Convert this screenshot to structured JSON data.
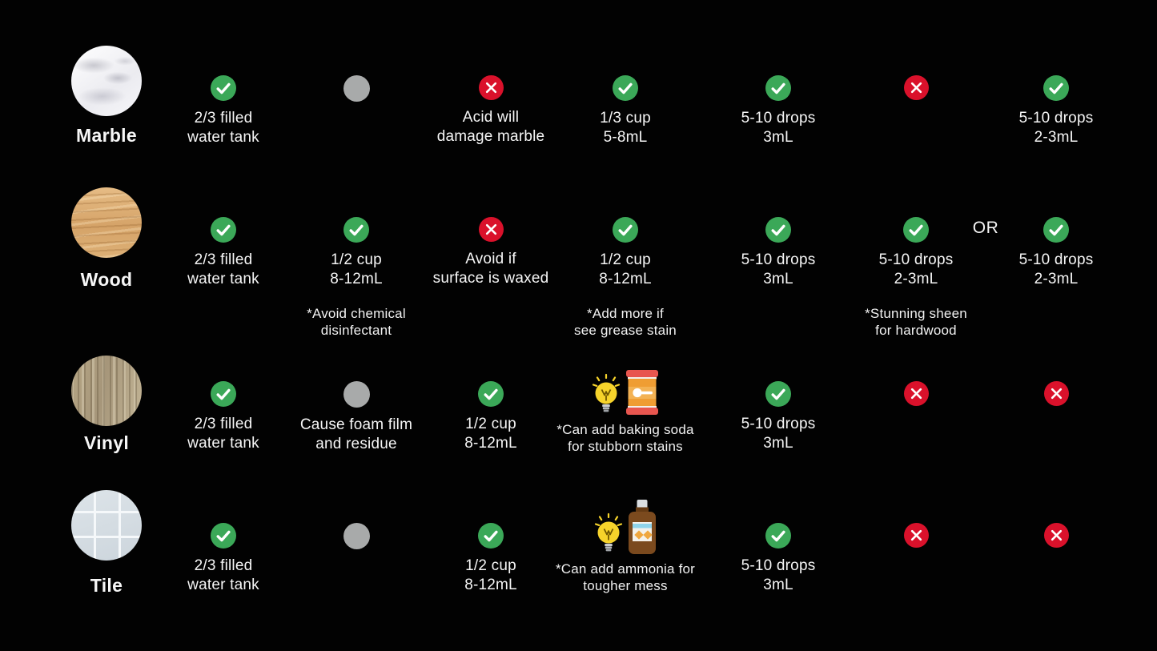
{
  "page": {
    "background": "#020202",
    "or_label": "OR"
  },
  "colors": {
    "yes": "#3BA858",
    "no": "#DA112B",
    "neutral": "#A8AAAA",
    "text": "#F6F6F6"
  },
  "rows": [
    {
      "material": {
        "label": "Marble",
        "texture": "marble"
      },
      "cells": [
        {
          "status": "yes",
          "lines": [
            "2/3 filled",
            "water tank"
          ]
        },
        {
          "status": "neutral",
          "lines": []
        },
        {
          "status": "no",
          "lines": [
            "Acid will",
            "damage marble"
          ]
        },
        {
          "status": "yes",
          "lines": [
            "1/3 cup",
            "5-8mL"
          ]
        },
        {
          "status": "yes",
          "lines": [
            "5-10 drops",
            "3mL"
          ]
        },
        {
          "status": "no",
          "lines": []
        },
        {
          "status": "yes",
          "lines": [
            "5-10 drops",
            "2-3mL"
          ]
        }
      ]
    },
    {
      "material": {
        "label": "Wood",
        "texture": "wood"
      },
      "cells": [
        {
          "status": "yes",
          "lines": [
            "2/3 filled",
            "water tank"
          ]
        },
        {
          "status": "yes",
          "lines": [
            "1/2 cup",
            "8-12mL"
          ],
          "note": [
            "*Avoid chemical",
            "disinfectant"
          ]
        },
        {
          "status": "no",
          "lines": [
            "Avoid if",
            "surface is waxed"
          ]
        },
        {
          "status": "yes",
          "lines": [
            "1/2 cup",
            "8-12mL"
          ],
          "note": [
            "*Add more if",
            "see grease stain"
          ]
        },
        {
          "status": "yes",
          "lines": [
            "5-10 drops",
            "3mL"
          ]
        },
        {
          "status": "yes",
          "lines": [
            "5-10 drops",
            "2-3mL"
          ],
          "note": [
            "*Stunning sheen",
            "for hardwood"
          ],
          "or_after": true
        },
        {
          "status": "yes",
          "lines": [
            "5-10 drops",
            "2-3mL"
          ]
        }
      ]
    },
    {
      "material": {
        "label": "Vinyl",
        "texture": "vinyl"
      },
      "cells": [
        {
          "status": "yes",
          "lines": [
            "2/3 filled",
            "water tank"
          ]
        },
        {
          "status": "neutral",
          "lines": [
            "Cause foam film",
            "and residue"
          ]
        },
        {
          "status": "yes",
          "lines": [
            "1/2 cup",
            "8-12mL"
          ]
        },
        {
          "status": "tip",
          "icons": [
            "lightbulb-icon",
            "baking-soda-icon"
          ],
          "note": [
            "*Can add baking soda",
            "for stubborn stains"
          ]
        },
        {
          "status": "yes",
          "lines": [
            "5-10 drops",
            "3mL"
          ]
        },
        {
          "status": "no",
          "lines": []
        },
        {
          "status": "no",
          "lines": []
        }
      ]
    },
    {
      "material": {
        "label": "Tile",
        "texture": "tile"
      },
      "cells": [
        {
          "status": "yes",
          "lines": [
            "2/3 filled",
            "water tank"
          ]
        },
        {
          "status": "neutral",
          "lines": []
        },
        {
          "status": "yes",
          "lines": [
            "1/2 cup",
            "8-12mL"
          ]
        },
        {
          "status": "tip",
          "icons": [
            "lightbulb-icon",
            "ammonia-bottle-icon"
          ],
          "note": [
            "*Can add ammonia for",
            "tougher mess"
          ]
        },
        {
          "status": "yes",
          "lines": [
            "5-10 drops",
            "3mL"
          ]
        },
        {
          "status": "no",
          "lines": []
        },
        {
          "status": "no",
          "lines": []
        }
      ]
    }
  ]
}
